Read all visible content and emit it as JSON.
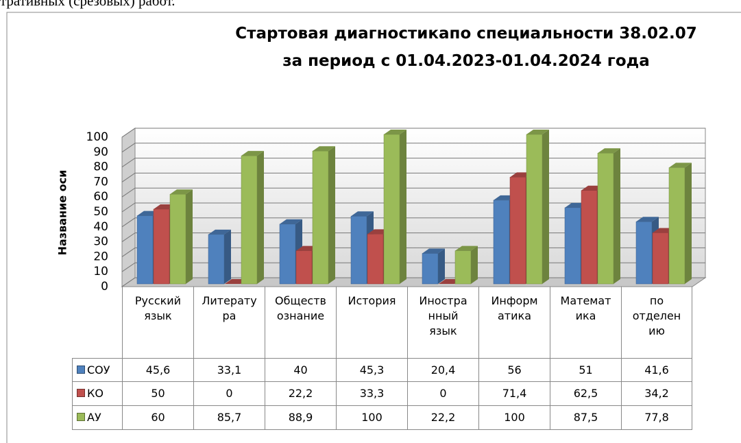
{
  "header_fragment": "тративных (срезовых) работ.",
  "chart_data": {
    "type": "bar3d",
    "title": "Стартовая диагностикапо специальности 38.02.07",
    "subtitle": "за период с 01.04.2023-01.04.2024 года",
    "y_label": "Название оси",
    "categories": [
      "Русский\nязык",
      "Литерату\nра",
      "Обществ\nознание",
      "История",
      "Иностра\nнный\nязык",
      "Информ\nатика",
      "Математ\nика",
      "по\nотделен\nию"
    ],
    "series": [
      {
        "name": "СОУ",
        "color": "#4f81bd",
        "values": [
          45.6,
          33.1,
          40,
          45.3,
          20.4,
          56,
          51,
          41.6
        ],
        "value_labels": [
          "45,6",
          "33,1",
          "40",
          "45,3",
          "20,4",
          "56",
          "51",
          "41,6"
        ]
      },
      {
        "name": "КО",
        "color": "#c0504d",
        "values": [
          50,
          0,
          22.2,
          33.3,
          0,
          71.4,
          62.5,
          34.2
        ],
        "value_labels": [
          "50",
          "0",
          "22,2",
          "33,3",
          "0",
          "71,4",
          "62,5",
          "34,2"
        ]
      },
      {
        "name": "АУ",
        "color": "#9bbb59",
        "values": [
          60,
          85.7,
          88.9,
          100,
          22.2,
          100,
          87.5,
          77.8
        ],
        "value_labels": [
          "60",
          "85,7",
          "88,9",
          "100",
          "22,2",
          "100",
          "87,5",
          "77,8"
        ]
      }
    ],
    "ylim": [
      0,
      100
    ],
    "yticks": [
      0,
      10,
      20,
      30,
      40,
      50,
      60,
      70,
      80,
      90,
      100
    ],
    "grid": true
  }
}
